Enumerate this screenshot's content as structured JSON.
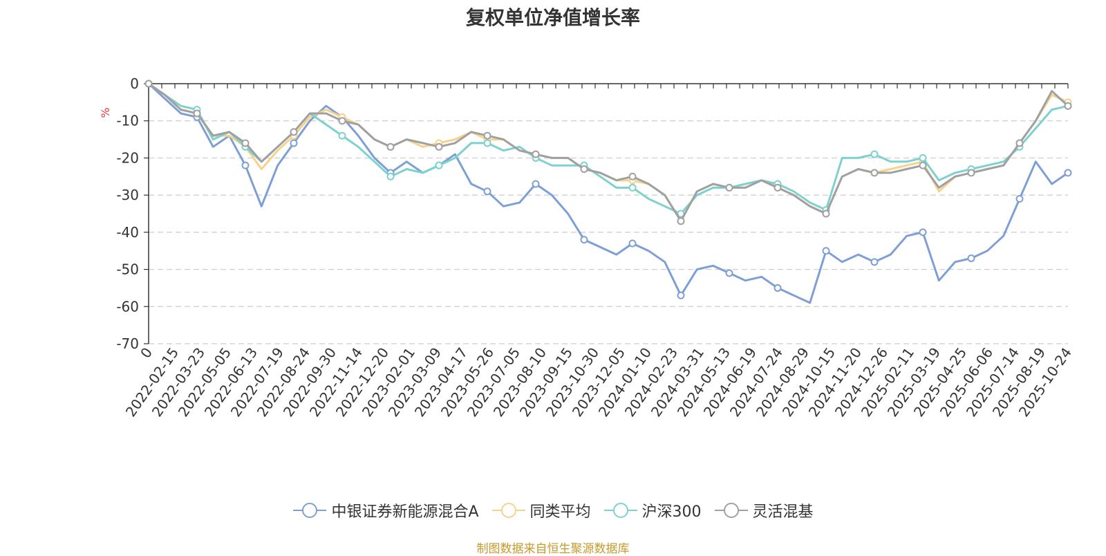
{
  "chart_data": {
    "type": "line",
    "title": "复权单位净值增长率",
    "ylabel": "%",
    "xlabel": "",
    "ylim": [
      -70,
      0
    ],
    "y_ticks": [
      0,
      -10,
      -20,
      -30,
      -40,
      -50,
      -60,
      -70
    ],
    "grid": true,
    "legend_position": "bottom-center",
    "x_tick_labels": [
      "0",
      "2022-02-15",
      "2022-03-23",
      "2022-05-05",
      "2022-06-13",
      "2022-07-19",
      "2022-08-24",
      "2022-09-30",
      "2022-11-14",
      "2022-12-20",
      "2023-02-01",
      "2023-03-09",
      "2023-04-17",
      "2023-05-26",
      "2023-07-05",
      "2023-08-10",
      "2023-09-15",
      "2023-10-30",
      "2023-12-05",
      "2024-01-10",
      "2024-02-23",
      "2024-03-31",
      "2024-05-13",
      "2024-06-19",
      "2024-07-24",
      "2024-08-29",
      "2024-10-15",
      "2024-11-20",
      "2024-12-26",
      "2025-02-11",
      "2025-03-19",
      "2025-04-25",
      "2025-06-06",
      "2025-07-14",
      "2025-08-19",
      "2025-10-24"
    ],
    "series": [
      {
        "name": "中银证券新能源混合A",
        "color": "#7e9fd6",
        "values": [
          0,
          -4,
          -8,
          -9,
          -17,
          -14,
          -22,
          -33,
          -22,
          -16,
          -10,
          -6,
          -9,
          -14,
          -20,
          -24,
          -21,
          -24,
          -22,
          -19,
          -27,
          -29,
          -33,
          -32,
          -27,
          -30,
          -35,
          -42,
          -44,
          -46,
          -43,
          -45,
          -48,
          -57,
          -50,
          -49,
          -51,
          -53,
          -52,
          -55,
          -57,
          -59,
          -45,
          -48,
          -46,
          -48,
          -46,
          -41,
          -40,
          -53,
          -48,
          -47,
          -45,
          -41,
          -31,
          -21,
          -27,
          -24
        ]
      },
      {
        "name": "同类平均",
        "color": "#f6d28c",
        "values": [
          0,
          -3,
          -7,
          -8,
          -14,
          -14,
          -17,
          -23,
          -18,
          -14,
          -9,
          -7,
          -9,
          -11,
          -15,
          -17,
          -15,
          -17,
          -16,
          -15,
          -13,
          -15,
          -15,
          -18,
          -19,
          -20,
          -20,
          -23,
          -24,
          -26,
          -26,
          -27,
          -30,
          -37,
          -29,
          -27,
          -28,
          -27,
          -26,
          -28,
          -30,
          -33,
          -35,
          -25,
          -23,
          -24,
          -23,
          -22,
          -21,
          -29,
          -25,
          -24,
          -23,
          -22,
          -16,
          -10,
          -3,
          -5
        ]
      },
      {
        "name": "沪深300",
        "color": "#7dd1cf",
        "values": [
          0,
          -3,
          -6,
          -7,
          -15,
          -13,
          -17,
          -21,
          -17,
          -13,
          -8,
          -11,
          -14,
          -17,
          -21,
          -25,
          -23,
          -24,
          -22,
          -20,
          -16,
          -16,
          -18,
          -17,
          -20,
          -22,
          -22,
          -22,
          -25,
          -28,
          -28,
          -31,
          -33,
          -35,
          -30,
          -28,
          -28,
          -27,
          -26,
          -27,
          -29,
          -32,
          -34,
          -20,
          -20,
          -19,
          -21,
          -21,
          -20,
          -26,
          -24,
          -23,
          -22,
          -21,
          -17,
          -12,
          -7,
          -6
        ]
      },
      {
        "name": "灵活混基",
        "color": "#a0a0a0",
        "values": [
          0,
          -3,
          -7,
          -8,
          -14,
          -13,
          -16,
          -21,
          -17,
          -13,
          -8,
          -8,
          -10,
          -11,
          -15,
          -17,
          -15,
          -16,
          -17,
          -16,
          -13,
          -14,
          -15,
          -18,
          -19,
          -20,
          -20,
          -23,
          -24,
          -26,
          -25,
          -27,
          -30,
          -37,
          -29,
          -27,
          -28,
          -28,
          -26,
          -28,
          -30,
          -33,
          -35,
          -25,
          -23,
          -24,
          -24,
          -23,
          -22,
          -28,
          -25,
          -24,
          -23,
          -22,
          -16,
          -10,
          -2,
          -6
        ]
      }
    ]
  },
  "source_note": "制图数据来自恒生聚源数据库"
}
